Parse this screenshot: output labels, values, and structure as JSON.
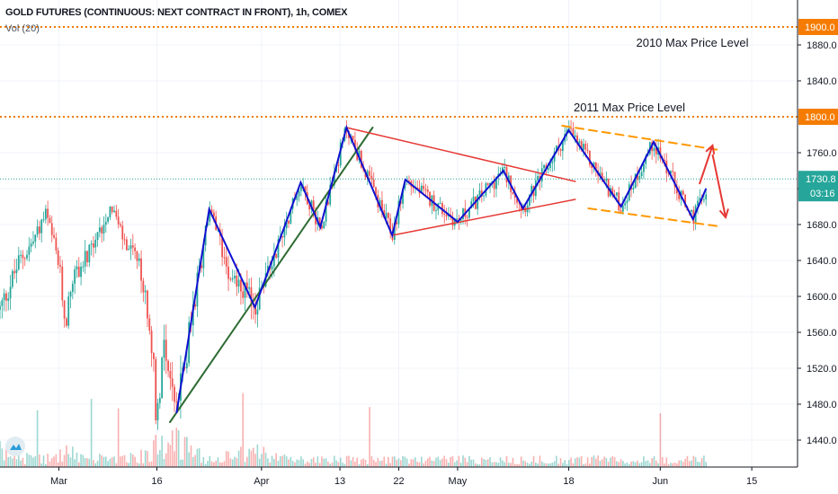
{
  "header": {
    "symbol_title": "GOLD FUTURES (CONTINUOUS: NEXT CONTRACT IN FRONT), 1h, COMEX",
    "volume_indicator": "Vol (20)"
  },
  "price_tag": {
    "value": "1730.8",
    "countdown": "03:16",
    "color": "#26a69a"
  },
  "colors": {
    "zigzag": "#1010d0",
    "trendline_green": "#2e6b33",
    "triangle_red": "#e53935",
    "channel_orange": "#ff9800",
    "level_orange": "#f57c00",
    "arrow_red": "#e53935",
    "candle_up": "#26a69a",
    "candle_down": "#ef5350"
  },
  "icons": {
    "logo": "tradingview-logo-icon"
  },
  "chart_data": {
    "type": "candlestick",
    "ylim": [
      1410,
      1930
    ],
    "y_ticks": [
      1440,
      1480,
      1520,
      1560,
      1600,
      1640,
      1680,
      1720,
      1760,
      1800,
      1840,
      1880,
      1900
    ],
    "y_tick_labels": [
      "1440.0",
      "1480.0",
      "1520.0",
      "1560.0",
      "1600.0",
      "1640.0",
      "1680.0",
      "1720.0",
      "1760.0",
      "1800.0",
      "1840.0",
      "1880.0",
      "1900.0"
    ],
    "x_range": [
      "2020-02-21",
      "2020-06-22"
    ],
    "x_ticks": [
      {
        "date": "2020-03-01",
        "label": "Mar"
      },
      {
        "date": "2020-03-16",
        "label": "16"
      },
      {
        "date": "2020-04-01",
        "label": "Apr"
      },
      {
        "date": "2020-04-13",
        "label": "13"
      },
      {
        "date": "2020-04-22",
        "label": "22"
      },
      {
        "date": "2020-05-01",
        "label": "May"
      },
      {
        "date": "2020-05-18",
        "label": "18"
      },
      {
        "date": "2020-06-01",
        "label": "Jun"
      },
      {
        "date": "2020-06-15",
        "label": "15"
      }
    ],
    "horizontal_levels": [
      {
        "price": 1900,
        "label": "1900.0",
        "annotation": "2010 Max Price Level"
      },
      {
        "price": 1800,
        "label": "1800.0",
        "annotation": "2011 Max Price Level"
      }
    ],
    "last_price": 1730.8,
    "zigzag": [
      [
        "2020-03-19",
        1470
      ],
      [
        "2020-03-24",
        1697
      ],
      [
        "2020-03-31",
        1588
      ],
      [
        "2020-04-07",
        1727
      ],
      [
        "2020-04-10",
        1677
      ],
      [
        "2020-04-14",
        1788
      ],
      [
        "2020-04-21",
        1668
      ],
      [
        "2020-04-23",
        1730
      ],
      [
        "2020-05-01",
        1683
      ],
      [
        "2020-05-08",
        1740
      ],
      [
        "2020-05-11",
        1698
      ],
      [
        "2020-05-18",
        1785
      ],
      [
        "2020-05-26",
        1700
      ],
      [
        "2020-05-31",
        1772
      ],
      [
        "2020-06-06",
        1686
      ],
      [
        "2020-06-08",
        1720
      ]
    ],
    "trendline": [
      [
        "2020-03-18",
        1460
      ],
      [
        "2020-04-18",
        1788
      ]
    ],
    "triangle_upper": [
      [
        "2020-04-14",
        1788
      ],
      [
        "2020-05-19",
        1728
      ]
    ],
    "triangle_lower": [
      [
        "2020-04-21",
        1668
      ],
      [
        "2020-05-19",
        1708
      ]
    ],
    "channel_upper": [
      [
        "2020-05-17",
        1790
      ],
      [
        "2020-06-10",
        1763
      ]
    ],
    "channel_lower": [
      [
        "2020-05-21",
        1698
      ],
      [
        "2020-06-10",
        1678
      ]
    ],
    "projection_arrows": [
      [
        [
          "2020-06-07",
          1725
        ],
        [
          "2020-06-09",
          1768
        ]
      ],
      [
        [
          "2020-06-09",
          1758
        ],
        [
          "2020-06-11",
          1688
        ]
      ]
    ],
    "price_path": [
      [
        "2020-02-21",
        1585
      ],
      [
        "2020-02-24",
        1640
      ],
      [
        "2020-02-26",
        1660
      ],
      [
        "2020-02-28",
        1692
      ],
      [
        "2020-03-01",
        1635
      ],
      [
        "2020-03-02",
        1570
      ],
      [
        "2020-03-03",
        1620
      ],
      [
        "2020-03-06",
        1650
      ],
      [
        "2020-03-09",
        1703
      ],
      [
        "2020-03-11",
        1660
      ],
      [
        "2020-03-13",
        1640
      ],
      [
        "2020-03-15",
        1570
      ],
      [
        "2020-03-16",
        1462
      ],
      [
        "2020-03-17",
        1555
      ],
      [
        "2020-03-19",
        1470
      ],
      [
        "2020-03-24",
        1697
      ],
      [
        "2020-03-27",
        1630
      ],
      [
        "2020-03-31",
        1588
      ],
      [
        "2020-04-07",
        1727
      ],
      [
        "2020-04-10",
        1677
      ],
      [
        "2020-04-14",
        1788
      ],
      [
        "2020-04-21",
        1668
      ],
      [
        "2020-04-23",
        1730
      ],
      [
        "2020-05-01",
        1683
      ],
      [
        "2020-05-08",
        1740
      ],
      [
        "2020-05-11",
        1698
      ],
      [
        "2020-05-18",
        1785
      ],
      [
        "2020-05-26",
        1700
      ],
      [
        "2020-05-31",
        1772
      ],
      [
        "2020-06-06",
        1686
      ],
      [
        "2020-06-08",
        1720
      ]
    ]
  }
}
